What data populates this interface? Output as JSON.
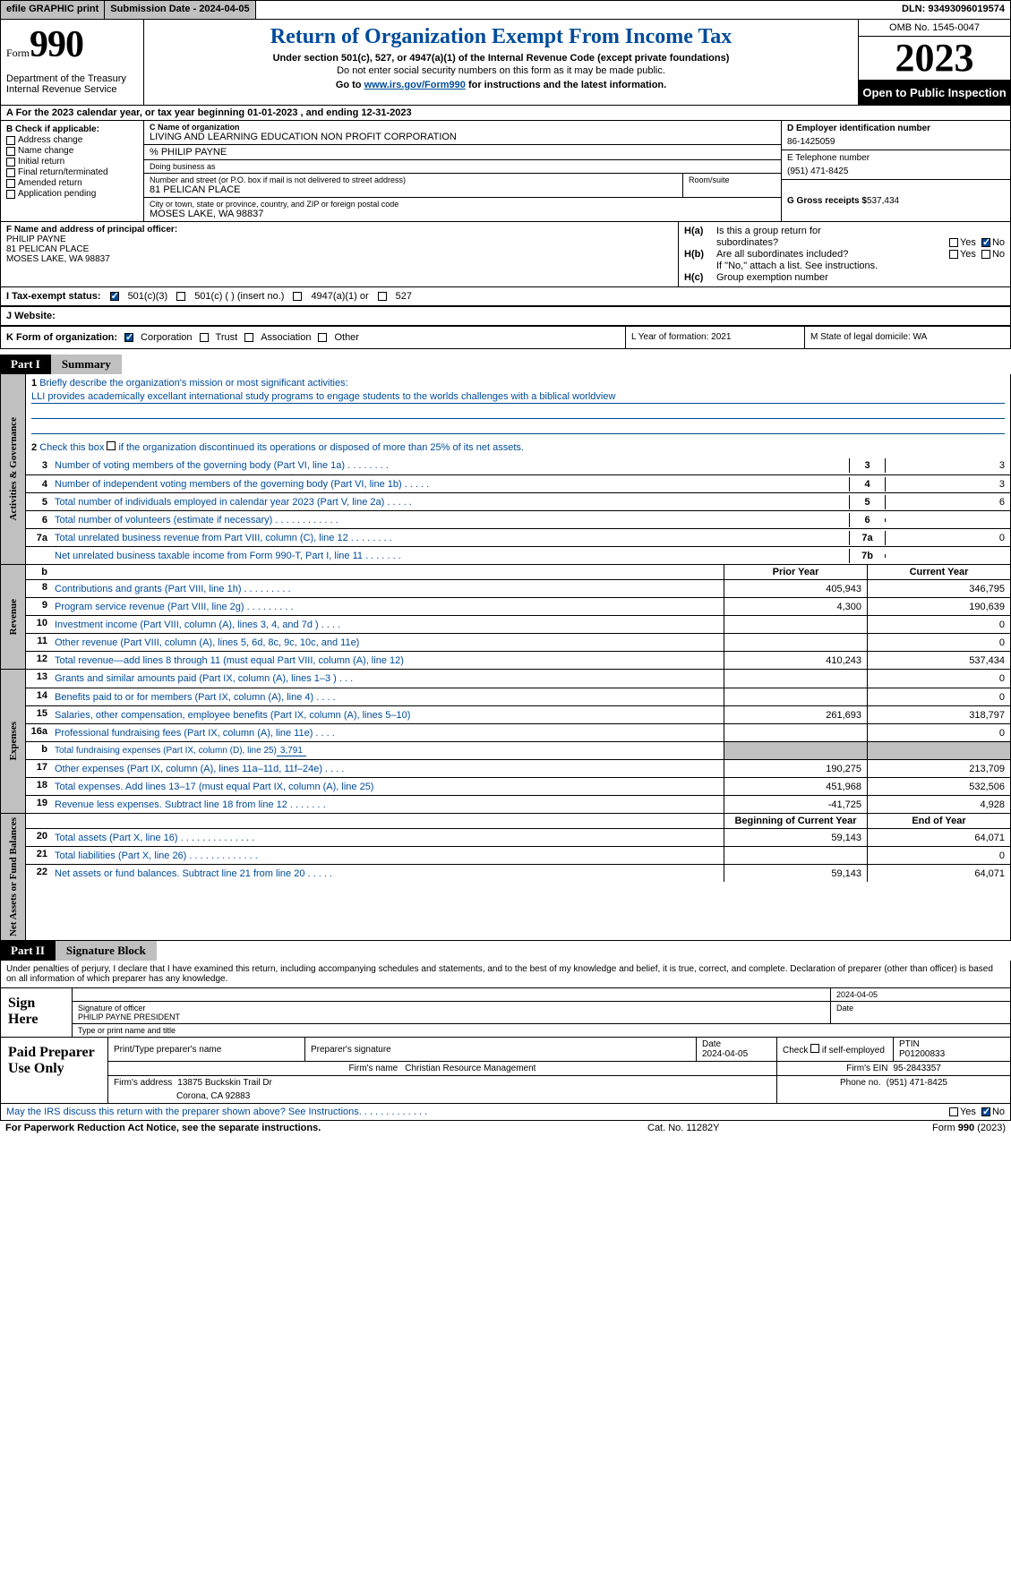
{
  "topbar": {
    "efile": "efile GRAPHIC print",
    "submission_label": "Submission Date - 2024-04-05",
    "dln": "DLN: 93493096019574"
  },
  "header": {
    "form_label": "Form",
    "form_number": "990",
    "dept": "Department of the Treasury Internal Revenue Service",
    "title": "Return of Organization Exempt From Income Tax",
    "subtitle": "Under section 501(c), 527, or 4947(a)(1) of the Internal Revenue Code (except private foundations)",
    "ssn_warn": "Do not enter social security numbers on this form as it may be made public.",
    "goto_pre": "Go to ",
    "goto_url": "www.irs.gov/Form990",
    "goto_post": " for instructions and the latest information.",
    "omb": "OMB No. 1545-0047",
    "year": "2023",
    "open": "Open to Public Inspection"
  },
  "rowA": "A  For the 2023 calendar year, or tax year beginning 01-01-2023    , and ending 12-31-2023",
  "B": {
    "label": "B Check if applicable:",
    "opts": [
      "Address change",
      "Name change",
      "Initial return",
      "Final return/terminated",
      "Amended return",
      "Application pending"
    ]
  },
  "C": {
    "name_label": "C Name of organization",
    "name": "LIVING AND LEARNING EDUCATION NON PROFIT CORPORATION",
    "care_of": "% PHILIP PAYNE",
    "dba_label": "Doing business as",
    "street_label": "Number and street (or P.O. box if mail is not delivered to street address)",
    "street": "81 PELICAN PLACE",
    "room_label": "Room/suite",
    "city_label": "City or town, state or province, country, and ZIP or foreign postal code",
    "city": "MOSES LAKE, WA   98837"
  },
  "D": {
    "label": "D Employer identification number",
    "val": "86-1425059"
  },
  "E": {
    "label": "E Telephone number",
    "val": "(951) 471-8425"
  },
  "G": {
    "label": "G Gross receipts $ ",
    "val": "537,434"
  },
  "F": {
    "label": "F  Name and address of principal officer:",
    "name": "PHILIP PAYNE",
    "street": "81 PELICAN PLACE",
    "city": "MOSES LAKE, WA   98837"
  },
  "H": {
    "a_label": "H(a)",
    "a_text1": "Is this a group return for",
    "a_text2": "subordinates?",
    "b_label": "H(b)",
    "b_text": "Are all subordinates included?",
    "b_note": "If \"No,\" attach a list. See instructions.",
    "c_label": "H(c)",
    "c_text": "Group exemption number",
    "yes": "Yes",
    "no": "No"
  },
  "I": {
    "label": "I   Tax-exempt status:",
    "opt1": "501(c)(3)",
    "opt2": "501(c) (  ) (insert no.)",
    "opt3": "4947(a)(1) or",
    "opt4": "527"
  },
  "J": {
    "label": "J   Website:"
  },
  "K": {
    "label": "K Form of organization:",
    "opts": [
      "Corporation",
      "Trust",
      "Association",
      "Other"
    ],
    "L": "L Year of formation: 2021",
    "M": "M State of legal domicile: WA"
  },
  "partI": {
    "tab": "Part I",
    "title": "Summary"
  },
  "gov": {
    "vtab": "Activities & Governance",
    "l1_num": "1",
    "l1": "Briefly describe the organization's mission or most significant activities:",
    "l1_text": "LLI provides academically excellant international study programs to engage students to the worlds challenges with a biblical worldview",
    "l2_num": "2",
    "l2": "Check this box      if the organization discontinued its operations or disposed of more than 25% of its net assets.",
    "lines": [
      {
        "n": "3",
        "d": "Number of voting members of the governing body (Part VI, line 1a)   .   .   .   .   .   .   .   .",
        "bn": "3",
        "v": "3"
      },
      {
        "n": "4",
        "d": "Number of independent voting members of the governing body (Part VI, line 1b)   .   .   .   .   .",
        "bn": "4",
        "v": "3"
      },
      {
        "n": "5",
        "d": "Total number of individuals employed in calendar year 2023 (Part V, line 2a)   .   .   .   .   .",
        "bn": "5",
        "v": "6"
      },
      {
        "n": "6",
        "d": "Total number of volunteers (estimate if necessary)   .   .   .   .   .   .   .   .   .   .   .   .",
        "bn": "6",
        "v": ""
      },
      {
        "n": "7a",
        "d": "Total unrelated business revenue from Part VIII, column (C), line 12   .   .   .   .   .   .   .   .",
        "bn": "7a",
        "v": "0"
      },
      {
        "n": "",
        "d": "Net unrelated business taxable income from Form 990-T, Part I, line 11   .   .   .   .   .   .   .",
        "bn": "7b",
        "v": ""
      }
    ]
  },
  "rev": {
    "vtab": "Revenue",
    "hdr_b": "b",
    "prior": "Prior Year",
    "current": "Current Year",
    "lines": [
      {
        "n": "8",
        "d": "Contributions and grants (Part VIII, line 1h)   .   .   .   .   .   .   .   .   .",
        "p": "405,943",
        "c": "346,795"
      },
      {
        "n": "9",
        "d": "Program service revenue (Part VIII, line 2g)   .   .   .   .   .   .   .   .   .",
        "p": "4,300",
        "c": "190,639"
      },
      {
        "n": "10",
        "d": "Investment income (Part VIII, column (A), lines 3, 4, and 7d )   .   .   .   .",
        "p": "",
        "c": "0"
      },
      {
        "n": "11",
        "d": "Other revenue (Part VIII, column (A), lines 5, 6d, 8c, 9c, 10c, and 11e)",
        "p": "",
        "c": "0"
      },
      {
        "n": "12",
        "d": "Total revenue—add lines 8 through 11 (must equal Part VIII, column (A), line 12)",
        "p": "410,243",
        "c": "537,434"
      }
    ]
  },
  "exp": {
    "vtab": "Expenses",
    "lines": [
      {
        "n": "13",
        "d": "Grants and similar amounts paid (Part IX, column (A), lines 1–3 )   .   .   .",
        "p": "",
        "c": "0"
      },
      {
        "n": "14",
        "d": "Benefits paid to or for members (Part IX, column (A), line 4)   .   .   .   .",
        "p": "",
        "c": "0"
      },
      {
        "n": "15",
        "d": "Salaries, other compensation, employee benefits (Part IX, column (A), lines 5–10)",
        "p": "261,693",
        "c": "318,797"
      },
      {
        "n": "16a",
        "d": "Professional fundraising fees (Part IX, column (A), line 11e)   .   .   .   .",
        "p": "",
        "c": "0"
      }
    ],
    "l16b_n": "b",
    "l16b": "Total fundraising expenses (Part IX, column (D), line 25) ",
    "l16b_val": "3,791",
    "lines2": [
      {
        "n": "17",
        "d": "Other expenses (Part IX, column (A), lines 11a–11d, 11f–24e)   .   .   .   .",
        "p": "190,275",
        "c": "213,709"
      },
      {
        "n": "18",
        "d": "Total expenses. Add lines 13–17 (must equal Part IX, column (A), line 25)",
        "p": "451,968",
        "c": "532,506"
      },
      {
        "n": "19",
        "d": "Revenue less expenses. Subtract line 18 from line 12   .   .   .   .   .   .   .",
        "p": "-41,725",
        "c": "4,928"
      }
    ]
  },
  "net": {
    "vtab": "Net Assets or Fund Balances",
    "begin": "Beginning of Current Year",
    "end": "End of Year",
    "lines": [
      {
        "n": "20",
        "d": "Total assets (Part X, line 16)   .   .   .   .   .   .   .   .   .   .   .   .   .   .",
        "p": "59,143",
        "c": "64,071"
      },
      {
        "n": "21",
        "d": "Total liabilities (Part X, line 26)   .   .   .   .   .   .   .   .   .   .   .   .   .",
        "p": "",
        "c": "0"
      },
      {
        "n": "22",
        "d": "Net assets or fund balances. Subtract line 21 from line 20   .   .   .   .   .",
        "p": "59,143",
        "c": "64,071"
      }
    ]
  },
  "partII": {
    "tab": "Part II",
    "title": "Signature Block"
  },
  "perjury": "Under penalties of perjury, I declare that I have examined this return, including accompanying schedules and statements, and to the best of my knowledge and belief, it is true, correct, and complete. Declaration of preparer (other than officer) is based on all information of which preparer has any knowledge.",
  "sign": {
    "label": "Sign Here",
    "date": "2024-04-05",
    "sig_label": "Signature of officer",
    "name": "PHILIP PAYNE PRESIDENT",
    "type_label": "Type or print name and title",
    "date_label": "Date"
  },
  "preparer": {
    "label": "Paid Preparer Use Only",
    "print_label": "Print/Type preparer's name",
    "sig_label": "Preparer's signature",
    "date_label": "Date",
    "date": "2024-04-05",
    "check_label": "Check         if self-employed",
    "ptin_label": "PTIN",
    "ptin": "P01200833",
    "firm_name_label": "Firm's name",
    "firm_name": "Christian Resource Management",
    "firm_ein_label": "Firm's EIN",
    "firm_ein": "95-2843357",
    "firm_addr_label": "Firm's address",
    "firm_addr1": "13875 Buckskin Trail Dr",
    "firm_addr2": "Corona, CA   92883",
    "phone_label": "Phone no.",
    "phone": "(951) 471-8425"
  },
  "discuss": {
    "text": "May the IRS discuss this return with the preparer shown above? See Instructions.   .   .   .   .   .   .   .   .   .   .   .   .",
    "yes": "Yes",
    "no": "No"
  },
  "footer": {
    "left": "For Paperwork Reduction Act Notice, see the separate instructions.",
    "mid": "Cat. No. 11282Y",
    "right_pre": "Form ",
    "right_num": "990",
    "right_post": " (2023)"
  }
}
